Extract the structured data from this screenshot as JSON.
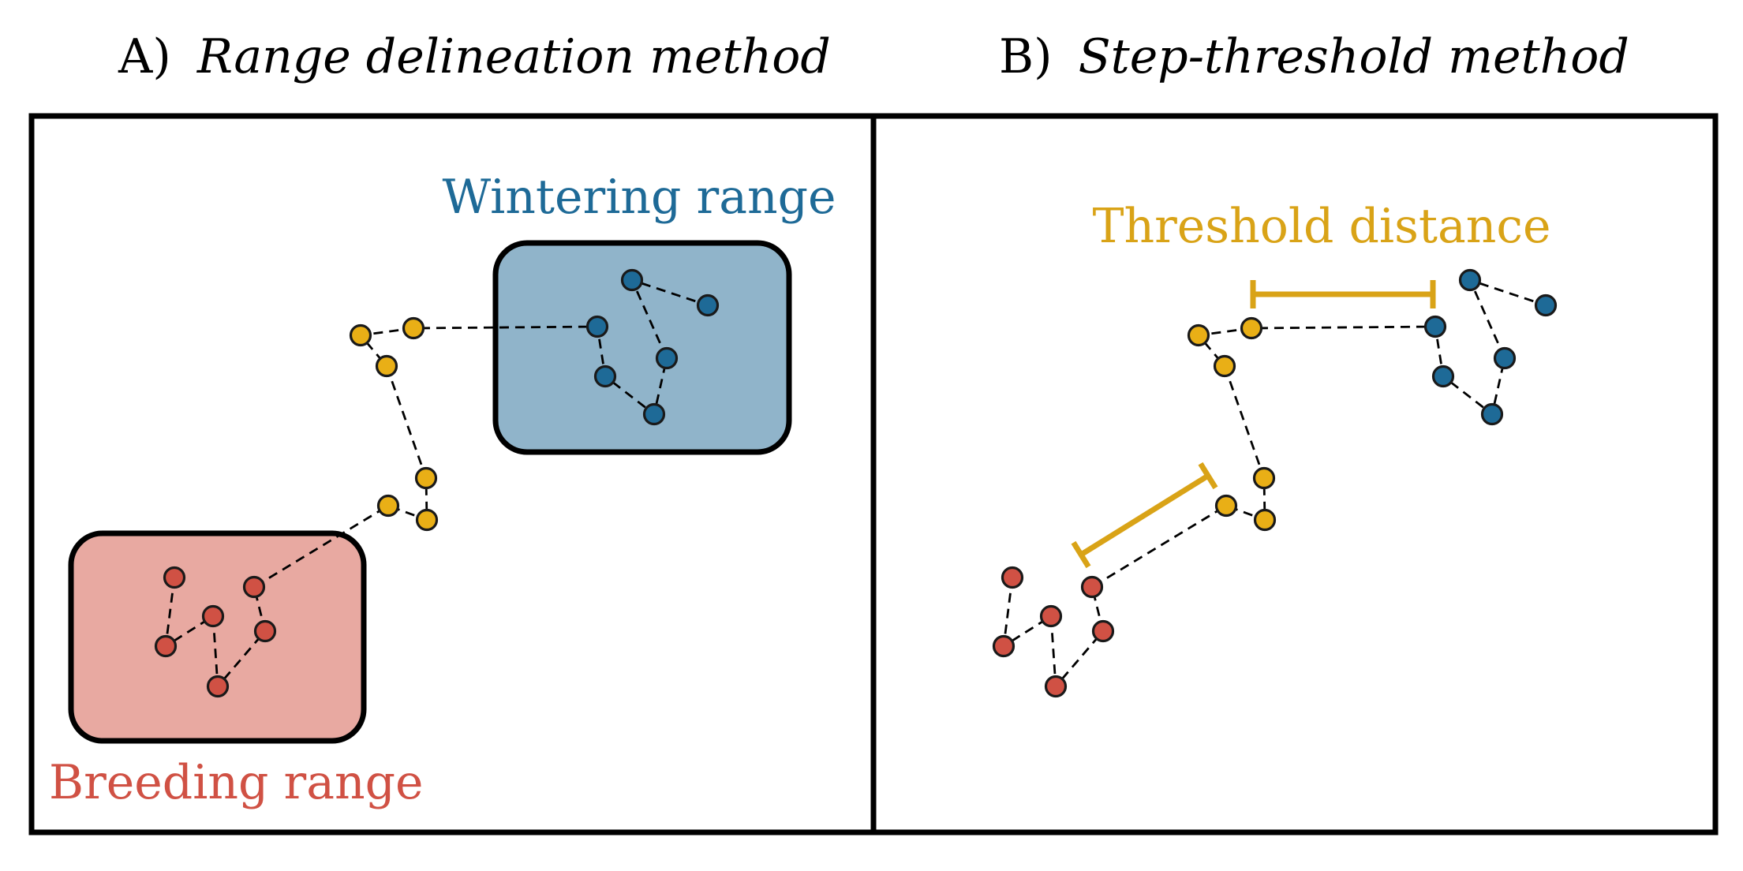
{
  "colors": {
    "breeding": "#D05144",
    "stopover": "#E9AF16",
    "wintering": "#1E6A97",
    "breeding_fill": "#E8A9A1",
    "wintering_fill": "#90B4CA",
    "threshold": "#D9A317",
    "frame": "#000000"
  },
  "panels": [
    {
      "letter": "A)",
      "title": "Range delineation method",
      "labels": {
        "wintering": "Wintering range",
        "breeding": "Breeding range"
      }
    },
    {
      "letter": "B)",
      "title": "Step-threshold method",
      "labels": {
        "threshold": "Threshold distance"
      }
    }
  ],
  "track": {
    "fix_groups": [
      "breeding",
      "stopover",
      "wintering"
    ],
    "fix_count": 18
  }
}
